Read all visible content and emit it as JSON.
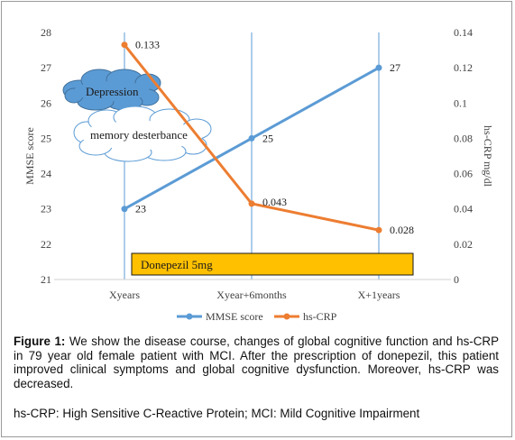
{
  "chart_data": {
    "type": "line",
    "categories": [
      "Xyears",
      "Xyear+6months",
      "X+1years"
    ],
    "series": [
      {
        "name": "MMSE score",
        "axis": "left",
        "color": "#5b9bd5",
        "values": [
          23,
          25,
          27
        ],
        "labels": [
          "23",
          "25",
          "27"
        ]
      },
      {
        "name": "hs-CRP",
        "axis": "right",
        "color": "#ed7d31",
        "values": [
          0.133,
          0.043,
          0.028
        ],
        "labels": [
          "0.133",
          "0.043",
          "0.028"
        ]
      }
    ],
    "ylabel": "MMSE score",
    "y2label": "hs-CRP mg/dl",
    "ylim": [
      21,
      28
    ],
    "y2lim": [
      0,
      0.14
    ],
    "yticks": [
      "21",
      "22",
      "23",
      "24",
      "25",
      "26",
      "27",
      "28"
    ],
    "y2ticks": [
      "0",
      "0.02",
      "0.04",
      "0.06",
      "0.08",
      "0.1",
      "0.12",
      "0.14"
    ],
    "legend_position": "bottom",
    "grid": false,
    "annotations": {
      "depression": "Depression",
      "memory": "memory desterbance",
      "drug": "Donepezil 5mg"
    },
    "annotation_colors": {
      "depression_fill": "#5b9bd5",
      "drug_fill": "#ffc000"
    }
  },
  "caption": {
    "label": "Figure 1:",
    "text": " We show the disease course, changes of global cognitive function and hs-CRP in 79 year old female patient with MCI. After the prescription of donepezil, this patient improved clinical symptoms and global cognitive dysfunction. Moreover, hs-CRP was decreased."
  },
  "footnote": "hs-CRP: High Sensitive C-Reactive Protein; MCI: Mild Cognitive Impairment"
}
